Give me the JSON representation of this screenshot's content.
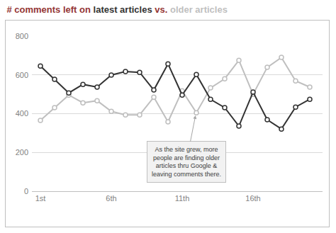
{
  "chart_data": {
    "type": "line",
    "title": "# comments left on latest articles vs. older articles",
    "x": [
      1,
      2,
      3,
      4,
      5,
      6,
      7,
      8,
      9,
      10,
      11,
      12,
      13,
      14,
      15,
      16,
      17,
      18,
      19,
      20
    ],
    "series": [
      {
        "name": "latest articles",
        "color": "#333333",
        "marker": "circle-open",
        "line_style": "solid",
        "values": [
          646,
          577,
          507,
          551,
          537,
          599,
          617,
          613,
          522,
          657,
          496,
          602,
          474,
          431,
          336,
          511,
          369,
          321,
          434,
          474
        ]
      },
      {
        "name": "older articles",
        "color": "#bfbfbf",
        "marker": "circle-open",
        "line_style": "solid",
        "values": [
          365,
          431,
          496,
          456,
          467,
          412,
          394,
          394,
          485,
          358,
          518,
          405,
          533,
          580,
          675,
          500,
          639,
          690,
          569,
          537
        ]
      }
    ],
    "xlim": [
      0.4,
      20.9
    ],
    "xticks": [
      {
        "value": 1,
        "label": "1st"
      },
      {
        "value": 6,
        "label": "6th"
      },
      {
        "value": 11,
        "label": "11th"
      },
      {
        "value": 16,
        "label": "16th"
      }
    ],
    "ylim": [
      0,
      800
    ],
    "yticks": [
      0,
      200,
      400,
      600,
      800
    ],
    "grid": true,
    "annotations": [
      {
        "text": "As the site grew, more\npeople are finding older\narticles thru Google &\nleaving comments there."
      }
    ]
  }
}
